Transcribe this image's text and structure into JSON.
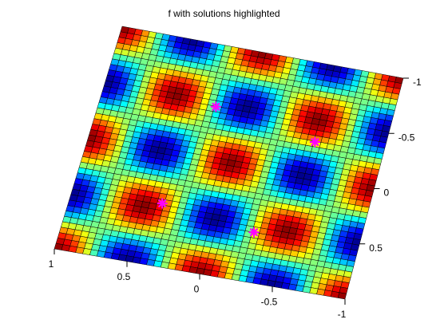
{
  "chart_data": {
    "type": "heatmap",
    "title": "f with solutions highlighted",
    "function": "cos(2*pi*x) * cos(2*pi*y)",
    "colormap": "jet",
    "grid": true,
    "grid_size": 41,
    "x_range": [
      -1,
      1
    ],
    "y_range": [
      -1,
      1
    ],
    "x_axis": {
      "label": "",
      "ticks": [
        "1",
        "0.5",
        "0",
        "-0.5",
        "-1"
      ]
    },
    "y_axis": {
      "label": "",
      "ticks": [
        "-1",
        "-0.5",
        "0",
        "0.5"
      ]
    },
    "solutions": [
      {
        "x": 0.52,
        "y": -0.31
      },
      {
        "x": -0.21,
        "y": -0.46
      },
      {
        "x": 0.28,
        "y": 0.56
      },
      {
        "x": -0.38,
        "y": 0.45
      }
    ],
    "marker": {
      "symbol": "*",
      "color": "#ff00ff"
    },
    "colors": {
      "edge": "#000000",
      "background": "#ffffff"
    }
  }
}
